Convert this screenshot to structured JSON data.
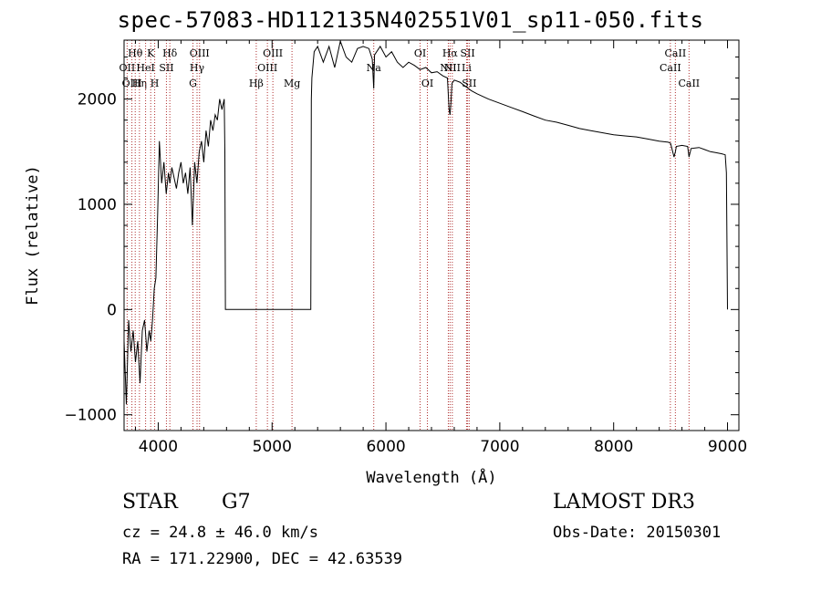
{
  "chart_data": {
    "type": "line",
    "title": "spec-57083-HD112135N402551V01_sp11-050.fits",
    "xlabel": "Wavelength (Å)",
    "ylabel": "Flux (relative)",
    "xlim": [
      3700,
      9100
    ],
    "ylim": [
      -1150,
      2560
    ],
    "xticks": [
      4000,
      5000,
      6000,
      7000,
      8000,
      9000
    ],
    "yticks": [
      -1000,
      0,
      1000,
      2000
    ],
    "series": [
      {
        "name": "spectrum",
        "x": [
          3700,
          3720,
          3740,
          3760,
          3780,
          3800,
          3820,
          3840,
          3860,
          3880,
          3900,
          3920,
          3935,
          3950,
          3965,
          3980,
          3995,
          4010,
          4030,
          4050,
          4070,
          4090,
          4102,
          4120,
          4140,
          4160,
          4180,
          4200,
          4220,
          4240,
          4260,
          4280,
          4300,
          4320,
          4340,
          4360,
          4380,
          4400,
          4420,
          4440,
          4460,
          4480,
          4500,
          4520,
          4540,
          4560,
          4580,
          4585,
          4590,
          4600,
          5340,
          5345,
          5350,
          5370,
          5400,
          5450,
          5500,
          5550,
          5600,
          5650,
          5700,
          5750,
          5800,
          5850,
          5880,
          5893,
          5900,
          5950,
          6000,
          6050,
          6100,
          6150,
          6200,
          6250,
          6300,
          6350,
          6400,
          6450,
          6500,
          6540,
          6555,
          6563,
          6570,
          6580,
          6600,
          6650,
          6700,
          6750,
          6800,
          6900,
          7000,
          7100,
          7200,
          7300,
          7400,
          7500,
          7600,
          7700,
          7800,
          7900,
          8000,
          8100,
          8200,
          8300,
          8400,
          8480,
          8500,
          8530,
          8542,
          8550,
          8600,
          8650,
          8662,
          8680,
          8750,
          8800,
          8850,
          8900,
          8950,
          8980,
          8990,
          9000
        ],
        "values": [
          -300,
          -900,
          -100,
          -400,
          -200,
          -500,
          -300,
          -700,
          -200,
          -100,
          -400,
          -200,
          -300,
          -100,
          200,
          300,
          900,
          1600,
          1200,
          1400,
          1100,
          1300,
          1200,
          1350,
          1250,
          1150,
          1300,
          1400,
          1200,
          1300,
          1100,
          1350,
          800,
          1400,
          1200,
          1500,
          1600,
          1400,
          1700,
          1550,
          1800,
          1700,
          1850,
          1800,
          2000,
          1900,
          2000,
          1500,
          0,
          0,
          0,
          2000,
          2200,
          2450,
          2500,
          2350,
          2500,
          2300,
          2550,
          2400,
          2350,
          2480,
          2500,
          2480,
          2380,
          2100,
          2420,
          2500,
          2400,
          2450,
          2350,
          2300,
          2350,
          2320,
          2280,
          2300,
          2250,
          2260,
          2220,
          2200,
          1900,
          1850,
          1950,
          2150,
          2180,
          2160,
          2120,
          2080,
          2050,
          2000,
          1960,
          1920,
          1880,
          1840,
          1800,
          1780,
          1750,
          1720,
          1700,
          1680,
          1660,
          1650,
          1640,
          1620,
          1600,
          1590,
          1580,
          1450,
          1500,
          1550,
          1560,
          1550,
          1450,
          1530,
          1540,
          1520,
          1500,
          1490,
          1480,
          1470,
          1300,
          0
        ]
      }
    ],
    "lines": [
      {
        "name": "Hθ",
        "wave": 3798,
        "row": 0
      },
      {
        "name": "OII",
        "wave": 3727,
        "row": 1
      },
      {
        "name": "OIII",
        "wave": 3769,
        "row": 2
      },
      {
        "name": "Hη",
        "wave": 3835,
        "row": 2
      },
      {
        "name": "HeI",
        "wave": 3889,
        "row": 1
      },
      {
        "name": "K",
        "wave": 3934,
        "row": 0
      },
      {
        "name": "H",
        "wave": 3969,
        "row": 2
      },
      {
        "name": "SII",
        "wave": 4072,
        "row": 1
      },
      {
        "name": "Hδ",
        "wave": 4102,
        "row": 0
      },
      {
        "name": "OIII",
        "wave": 4363,
        "row": 0
      },
      {
        "name": "Hγ",
        "wave": 4341,
        "row": 1
      },
      {
        "name": "G",
        "wave": 4305,
        "row": 2
      },
      {
        "name": "Hβ",
        "wave": 4861,
        "row": 2
      },
      {
        "name": "OIII",
        "wave": 5007,
        "row": 0
      },
      {
        "name": "OIII",
        "wave": 4959,
        "row": 1
      },
      {
        "name": "Mg",
        "wave": 5175,
        "row": 2
      },
      {
        "name": "Na",
        "wave": 5893,
        "row": 1
      },
      {
        "name": "OI",
        "wave": 6300,
        "row": 0
      },
      {
        "name": "OI",
        "wave": 6364,
        "row": 2
      },
      {
        "name": "NII",
        "wave": 6548,
        "row": 1
      },
      {
        "name": "Hα",
        "wave": 6563,
        "row": 0
      },
      {
        "name": "NII",
        "wave": 6583,
        "row": 1
      },
      {
        "name": "SII",
        "wave": 6717,
        "row": 0
      },
      {
        "name": "Li",
        "wave": 6708,
        "row": 1
      },
      {
        "name": "SII",
        "wave": 6731,
        "row": 2
      },
      {
        "name": "CaII",
        "wave": 8542,
        "row": 0
      },
      {
        "name": "CaII",
        "wave": 8498,
        "row": 1
      },
      {
        "name": "CaII",
        "wave": 8662,
        "row": 2
      }
    ]
  },
  "info": {
    "object_class": "STAR",
    "subclass": "G7",
    "survey": "LAMOST DR3",
    "cz": "cz = 24.8 ± 46.0 km/s",
    "obs_date": "Obs-Date: 20150301",
    "radec": "RA = 171.22900, DEC =  42.63539"
  },
  "colors": {
    "line_marker": "#b03030",
    "spectrum": "#000000"
  }
}
